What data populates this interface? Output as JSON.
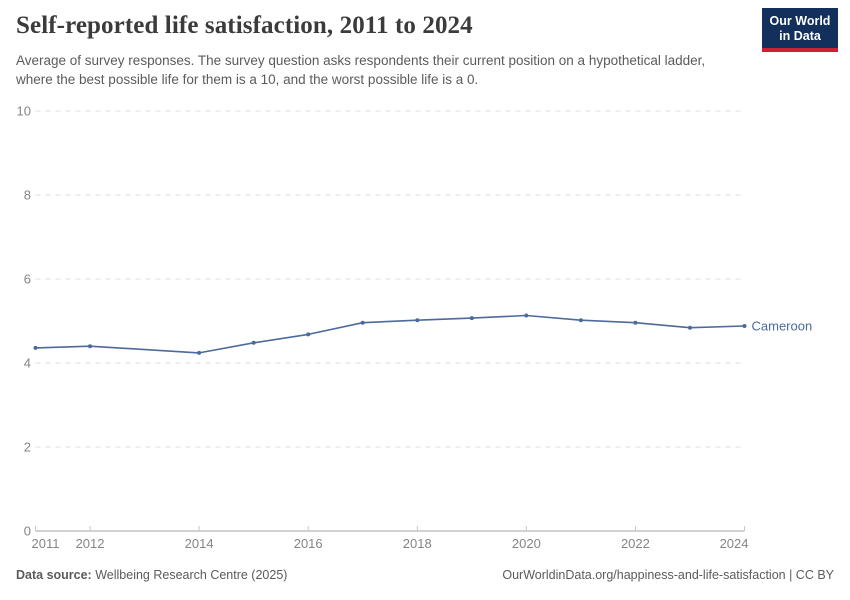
{
  "header": {
    "title": "Self-reported life satisfaction, 2011 to 2024",
    "subtitle": "Average of survey responses. The survey question asks respondents their current position on a hypothetical ladder, where the best possible life for them is a 10, and the worst possible life is a 0.",
    "logo": {
      "line1": "Our World",
      "line2": "in Data",
      "bg_color": "#12305b",
      "accent_color": "#c82332"
    }
  },
  "chart_data": {
    "type": "line",
    "title": "Self-reported life satisfaction, 2011 to 2024",
    "xlabel": "",
    "ylabel": "",
    "xlim": [
      2011,
      2024
    ],
    "ylim": [
      0,
      10
    ],
    "x_ticks": [
      2011,
      2012,
      2014,
      2016,
      2018,
      2020,
      2022,
      2024
    ],
    "y_ticks": [
      0,
      2,
      4,
      6,
      8,
      10
    ],
    "grid": "horizontal-dashed",
    "legend_position": "end-of-line-label",
    "series": [
      {
        "name": "Cameroon",
        "color": "#4c6a9c",
        "points": [
          {
            "x": 2011,
            "y": 4.36
          },
          {
            "x": 2012,
            "y": 4.4
          },
          {
            "x": 2014,
            "y": 4.24
          },
          {
            "x": 2015,
            "y": 4.48
          },
          {
            "x": 2016,
            "y": 4.68
          },
          {
            "x": 2017,
            "y": 4.96
          },
          {
            "x": 2018,
            "y": 5.02
          },
          {
            "x": 2019,
            "y": 5.07
          },
          {
            "x": 2020,
            "y": 5.13
          },
          {
            "x": 2021,
            "y": 5.02
          },
          {
            "x": 2022,
            "y": 4.96
          },
          {
            "x": 2023,
            "y": 4.84
          },
          {
            "x": 2024,
            "y": 4.88
          }
        ]
      }
    ]
  },
  "colors": {
    "line": "#4c6a9c",
    "grid": "#dedede",
    "axis": "#a3a3a3",
    "tick_mark": "#c8c8c8",
    "tick_label": "#858585",
    "title": "#3b3b3b",
    "subtitle": "#5b5b5b",
    "footer": "#5b5b5b"
  },
  "footer": {
    "datasource_label": "Data source:",
    "datasource_value": " Wellbeing Research Centre (2025)",
    "url_text": "OurWorldinData.org/happiness-and-life-satisfaction | CC BY"
  }
}
